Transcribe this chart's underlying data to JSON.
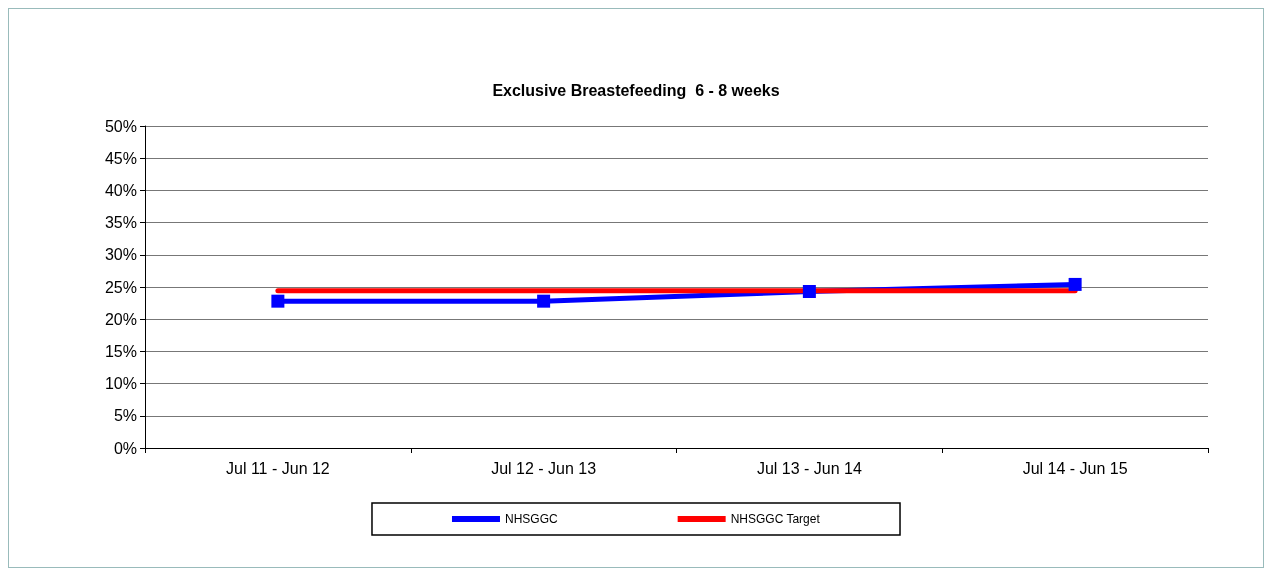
{
  "chart_data": {
    "type": "line",
    "title": "Exclusive Breastefeeding  6 - 8 weeks",
    "categories": [
      "Jul 11 - Jun 12",
      "Jul 12 - Jun 13",
      "Jul 13 - Jun 14",
      "Jul 14 - Jun 15"
    ],
    "series": [
      {
        "name": "NHSGGC",
        "color": "#0000ff",
        "marker": "square",
        "values": [
          22.8,
          22.8,
          24.3,
          25.4
        ]
      },
      {
        "name": "NHSGGC Target",
        "color": "#ff0000",
        "marker": "none",
        "values": [
          24.4,
          24.4,
          24.4,
          24.4
        ]
      }
    ],
    "ylim": [
      0,
      50
    ],
    "yticks": [
      {
        "value": 0,
        "label": "0%"
      },
      {
        "value": 5,
        "label": "5%"
      },
      {
        "value": 10,
        "label": "10%"
      },
      {
        "value": 15,
        "label": "15%"
      },
      {
        "value": 20,
        "label": "20%"
      },
      {
        "value": 25,
        "label": "25%"
      },
      {
        "value": 30,
        "label": "30%"
      },
      {
        "value": 35,
        "label": "35%"
      },
      {
        "value": 40,
        "label": "40%"
      },
      {
        "value": 45,
        "label": "45%"
      },
      {
        "value": 50,
        "label": "50%"
      }
    ],
    "grid": "y",
    "legend": "bottom"
  }
}
